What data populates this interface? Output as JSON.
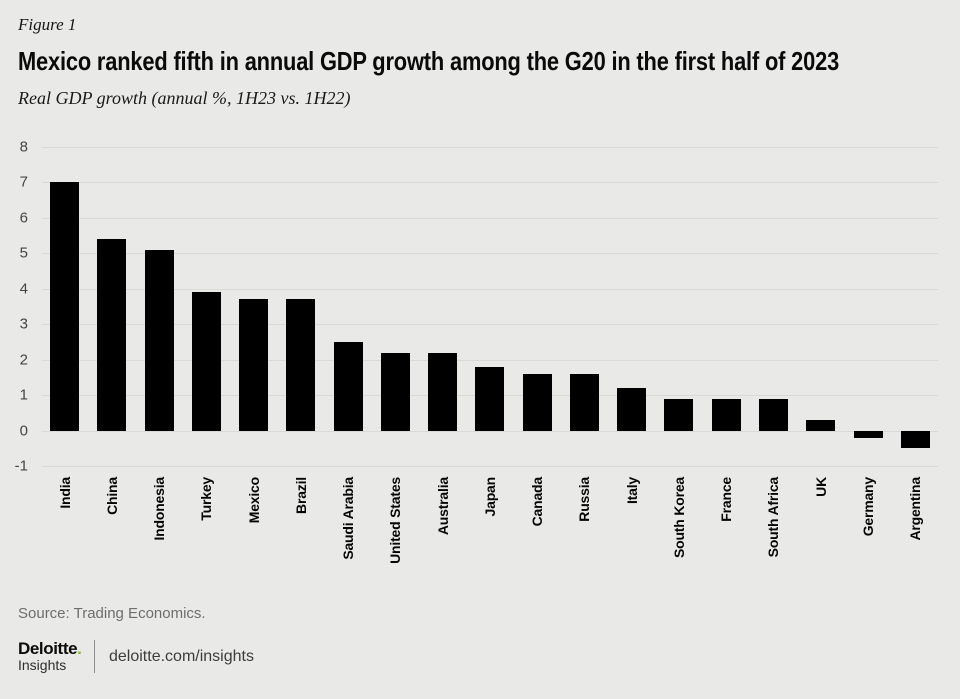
{
  "header": {
    "figure_label": "Figure 1",
    "title": "Mexico ranked fifth in annual GDP growth among the G20 in the first half of 2023",
    "subtitle": "Real GDP growth (annual %, 1H23 vs. 1H22)"
  },
  "chart_data": {
    "type": "bar",
    "title": "Mexico ranked fifth in annual GDP growth among the G20 in the first half of 2023",
    "subtitle": "Real GDP growth (annual %, 1H23 vs. 1H22)",
    "categories": [
      "India",
      "China",
      "Indonesia",
      "Turkey",
      "Mexico",
      "Brazil",
      "Saudi Arabia",
      "United States",
      "Australia",
      "Japan",
      "Canada",
      "Russia",
      "Italy",
      "South Korea",
      "France",
      "South Africa",
      "UK",
      "Germany",
      "Argentina"
    ],
    "values": [
      7.0,
      5.4,
      5.1,
      3.9,
      3.7,
      3.7,
      2.5,
      2.2,
      2.2,
      1.8,
      1.6,
      1.6,
      1.2,
      0.9,
      0.9,
      0.9,
      0.3,
      -0.2,
      -0.5
    ],
    "xlabel": "",
    "ylabel": "Real GDP growth (annual %)",
    "ylim": [
      -1,
      8
    ],
    "yticks": [
      8,
      7,
      6,
      5,
      4,
      3,
      2,
      1,
      0,
      -1
    ],
    "grid": true,
    "legend": "none",
    "bar_color": "#000000",
    "background_color": "#e9e9e7",
    "gridline_color": "#d9d9d6"
  },
  "footer": {
    "source": "Source: Trading Economics.",
    "brand": {
      "name": "Deloitte",
      "dot": ".",
      "dot_color": "#86bc25",
      "sub": "Insights",
      "url": "deloitte.com/insights"
    }
  }
}
